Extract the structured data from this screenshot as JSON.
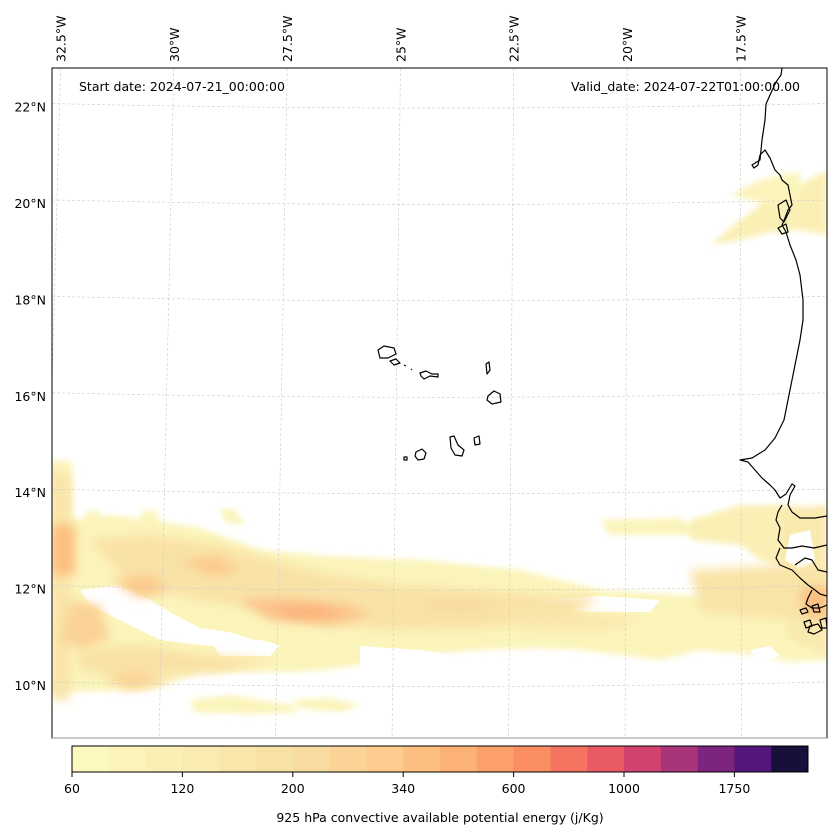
{
  "map": {
    "type": "filled-contour-map",
    "variable": "925 hPa convective available potential energy",
    "units": "j/Kg",
    "start_date_label": "Start date: 2024-07-21_00:00:00",
    "valid_date_label": "Valid_date: 2024-07-22T01:00:00.00",
    "extent": {
      "lon_min": -32.6,
      "lon_max": -15.5,
      "lat_min": 8.9,
      "lat_max": 22.8
    },
    "lon_ticks": [
      {
        "lon": -32.5,
        "label": "32.5°W"
      },
      {
        "lon": -30.0,
        "label": "30°W"
      },
      {
        "lon": -27.5,
        "label": "27.5°W"
      },
      {
        "lon": -25.0,
        "label": "25°W"
      },
      {
        "lon": -22.5,
        "label": "22.5°W"
      },
      {
        "lon": -20.0,
        "label": "20°W"
      },
      {
        "lon": -17.5,
        "label": "17.5°W"
      }
    ],
    "lat_ticks": [
      {
        "lat": 22,
        "label": "22°N"
      },
      {
        "lat": 20,
        "label": "20°N"
      },
      {
        "lat": 18,
        "label": "18°N"
      },
      {
        "lat": 16,
        "label": "16°N"
      },
      {
        "lat": 14,
        "label": "14°N"
      },
      {
        "lat": 12,
        "label": "12°N"
      },
      {
        "lat": 10,
        "label": "10°N"
      }
    ],
    "features": [
      "West African coastline",
      "Cape Verde islands",
      "Bijagós islands"
    ]
  },
  "chart_data": {
    "type": "heatmap",
    "title": "",
    "xlabel": "",
    "ylabel": "",
    "colorbar": {
      "label": "925 hPa convective available potential energy (j/Kg)",
      "tick_labels": [
        "60",
        "120",
        "200",
        "340",
        "600",
        "1000",
        "1750"
      ],
      "tick_level_index": [
        0,
        3,
        6,
        9,
        12,
        15,
        18
      ],
      "n_levels": 20,
      "colors": [
        "#fcf8bf",
        "#fbf3b9",
        "#faefb5",
        "#f9ebb1",
        "#f9e6ab",
        "#f8e1a4",
        "#f8dba0",
        "#fbd396",
        "#fdcb8d",
        "#fdbf80",
        "#fcb276",
        "#fba06a",
        "#fa8e61",
        "#f57461",
        "#e95a63",
        "#d44370",
        "#a8347a",
        "#7d257e",
        "#55167b",
        "#16103a"
      ]
    },
    "regions": [
      {
        "name": "ITCZ band (approx. 10.5–12.5°N, 32.5°W–16°W)",
        "typical_value_range": [
          60,
          340
        ],
        "peak_near": "11.3°N, 27°W"
      },
      {
        "name": "Western edge column (32.5°W, 10–14.5°N)",
        "typical_value_range": [
          60,
          400
        ],
        "peak_near": "12.8°N, 32.5°W"
      },
      {
        "name": "Mauritanian plume (~20°N, 18–15.5°W)",
        "typical_value_range": [
          60,
          120
        ]
      },
      {
        "name": "Senegal/Guinea-Bissau coast (11–13°N, 16–15.5°W)",
        "typical_value_range": [
          60,
          340
        ]
      }
    ]
  }
}
